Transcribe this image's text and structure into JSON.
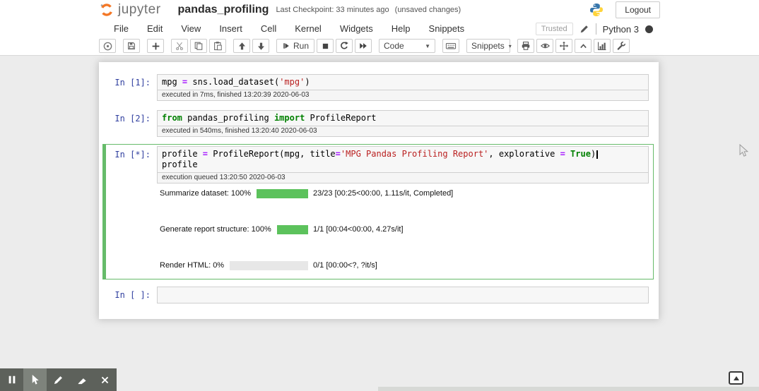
{
  "header": {
    "logo_text": "jupyter",
    "title": "pandas_profiling",
    "checkpoint": "Last Checkpoint: 33 minutes ago",
    "unsaved": "(unsaved changes)",
    "logout_label": "Logout"
  },
  "menubar": {
    "items": [
      "File",
      "Edit",
      "View",
      "Insert",
      "Cell",
      "Kernel",
      "Widgets",
      "Help",
      "Snippets"
    ],
    "trusted_label": "Trusted",
    "kernel_name": "Python 3"
  },
  "toolbar": {
    "run_label": "Run",
    "cell_type_value": "Code",
    "snippets_label": "Snippets",
    "icons": [
      "circle-dot",
      "save",
      "add-cell",
      "cut",
      "copy",
      "paste",
      "move-up",
      "move-down",
      "run",
      "stop",
      "restart-kernel",
      "restart-run-all",
      "cell-type-select",
      "keyboard",
      "snippets-select",
      "print",
      "preview",
      "move",
      "collapse",
      "chart",
      "tools"
    ]
  },
  "notebook": {
    "cells": [
      {
        "prompt": "In [1]:",
        "source": "mpg = sns.load_dataset('mpg')",
        "status": "executed in 7ms, finished 13:20:39 2020-06-03",
        "lines": [
          [
            {
              "c": "p",
              "t": "mpg "
            },
            {
              "c": "o",
              "t": "="
            },
            {
              "c": "p",
              "t": " sns.load_dataset("
            },
            {
              "c": "s",
              "t": "'mpg'"
            },
            {
              "c": "p",
              "t": ")"
            }
          ]
        ]
      },
      {
        "prompt": "In [2]:",
        "source": "from pandas_profiling import ProfileReport",
        "status": "executed in 540ms, finished 13:20:40 2020-06-03",
        "lines": [
          [
            {
              "c": "k",
              "t": "from"
            },
            {
              "c": "p",
              "t": " pandas_profiling "
            },
            {
              "c": "k",
              "t": "import"
            },
            {
              "c": "p",
              "t": " ProfileReport"
            }
          ]
        ]
      },
      {
        "prompt": "In [*]:",
        "source": "profile = ProfileReport(mpg, title='MPG Pandas Profiling Report', explorative = True)\nprofile",
        "status": "execution queued 13:20:50 2020-06-03",
        "selected": true,
        "lines": [
          [
            {
              "c": "p",
              "t": "profile "
            },
            {
              "c": "o",
              "t": "="
            },
            {
              "c": "p",
              "t": " ProfileReport(mpg, title"
            },
            {
              "c": "o",
              "t": "="
            },
            {
              "c": "s",
              "t": "'MPG Pandas Profiling Report'"
            },
            {
              "c": "p",
              "t": ", explorative "
            },
            {
              "c": "o",
              "t": "="
            },
            {
              "c": "p",
              "t": " "
            },
            {
              "c": "b",
              "t": "True"
            },
            {
              "c": "p",
              "t": ")"
            },
            {
              "c": "cur",
              "t": ""
            }
          ],
          [
            {
              "c": "p",
              "t": "profile"
            }
          ]
        ]
      },
      {
        "prompt": "In [ ]:",
        "source": "",
        "lines": [
          []
        ]
      }
    ],
    "progress_bars": [
      {
        "label": "Summarize dataset: 100%",
        "percent": 100,
        "stats": "23/23 [00:25<00:00, 1.11s/it, Completed]"
      },
      {
        "label": "Generate report structure: 100%",
        "percent": 100,
        "stats": "1/1 [00:04<00:00, 4.27s/it]"
      },
      {
        "label": "Render HTML: 0%",
        "percent": 0,
        "stats": "0/1 [00:00<?, ?it/s]"
      }
    ]
  },
  "annotation_toolbar": {
    "tools": [
      "pause",
      "cursor",
      "pencil",
      "marker",
      "close"
    ],
    "active_tool": "cursor"
  },
  "colors": {
    "logo_orange": "#f37726",
    "selected_cell_green": "#66bb6a",
    "progress_green": "#5cc25c",
    "prompt_blue": "#303f9f",
    "keyword_green": "#008000",
    "operator_purple": "#aa22ff",
    "string_red": "#ba2121",
    "python_blue": "#3776ab",
    "python_yellow": "#ffd43b"
  }
}
